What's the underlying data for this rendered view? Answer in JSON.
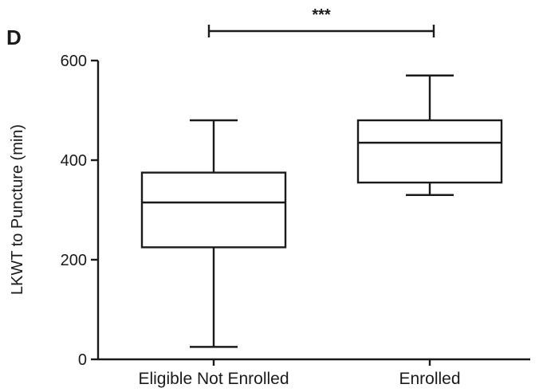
{
  "panel_label": "D",
  "chart_data": {
    "type": "box",
    "categories": [
      "Eligible Not Enrolled",
      "Enrolled"
    ],
    "boxes": [
      {
        "category": "Eligible Not Enrolled",
        "min": 25,
        "q1": 225,
        "median": 315,
        "q3": 375,
        "max": 480
      },
      {
        "category": "Enrolled",
        "min": 330,
        "q1": 355,
        "median": 435,
        "q3": 480,
        "max": 570
      }
    ],
    "ylabel": "LKWT to Puncture (min)",
    "xlabel": "",
    "ylim": [
      0,
      600
    ],
    "yticks": [
      0,
      200,
      400,
      600
    ],
    "grid": false,
    "significance": {
      "between": [
        "Eligible Not Enrolled",
        "Enrolled"
      ],
      "label": "***"
    }
  }
}
